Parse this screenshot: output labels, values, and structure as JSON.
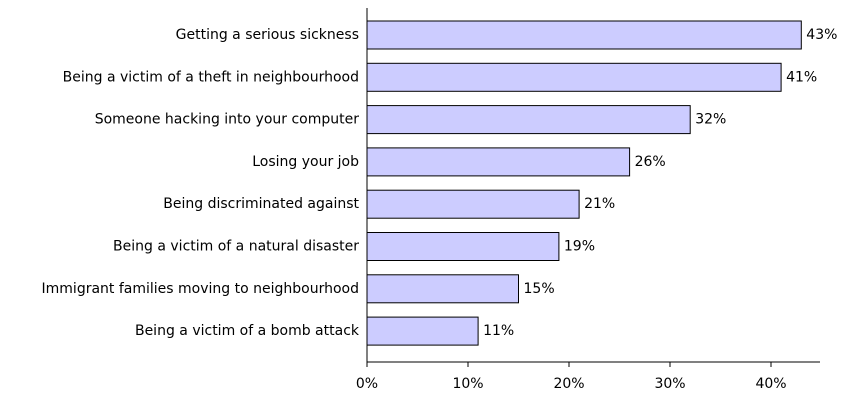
{
  "chart_data": {
    "type": "bar",
    "orientation": "horizontal",
    "categories": [
      "Getting a serious sickness",
      "Being a victim of a theft in neighbourhood",
      "Someone hacking into your computer",
      "Losing your job",
      "Being discriminated against",
      "Being a victim of a natural disaster",
      "Immigrant families moving to neighbourhood",
      "Being a victim of a bomb attack"
    ],
    "values": [
      43,
      41,
      32,
      26,
      21,
      19,
      15,
      11
    ],
    "value_labels": [
      "43%",
      "41%",
      "32%",
      "26%",
      "21%",
      "19%",
      "15%",
      "11%"
    ],
    "title": "",
    "xlabel": "",
    "ylabel": "",
    "xlim": [
      0,
      45
    ],
    "x_ticks": [
      0,
      10,
      20,
      30,
      40
    ],
    "x_tick_labels": [
      "0%",
      "10%",
      "20%",
      "30%",
      "40%"
    ],
    "grid": false,
    "legend": "none",
    "bar_color": "#ccccff",
    "bar_edge_color": "#000000"
  }
}
